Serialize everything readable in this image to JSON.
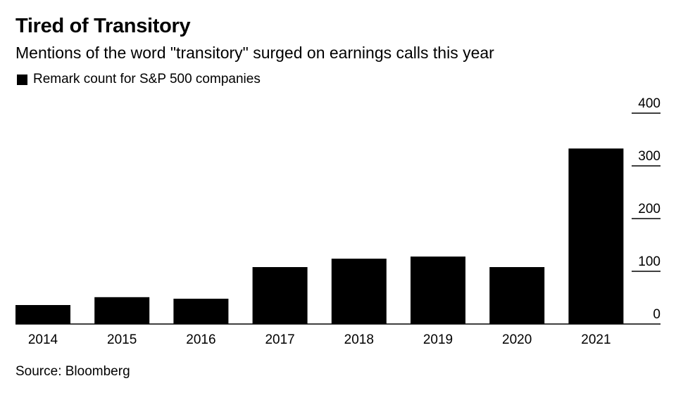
{
  "header": {
    "title": "Tired of Transitory",
    "subtitle": "Mentions of the word \"transitory\" surged on earnings calls this year"
  },
  "footer": {
    "source": "Source: Bloomberg"
  },
  "colors": {
    "bar": "#000000",
    "axis": "#000000",
    "background": "#ffffff"
  },
  "chart_data": {
    "type": "bar",
    "title": "Tired of Transitory",
    "subtitle": "Mentions of the word \"transitory\" surged on earnings calls this year",
    "categories": [
      "2014",
      "2015",
      "2016",
      "2017",
      "2018",
      "2019",
      "2020",
      "2021"
    ],
    "series": [
      {
        "name": "Remark count for S&P 500 companies",
        "values": [
          36,
          51,
          48,
          108,
          124,
          128,
          108,
          333
        ]
      }
    ],
    "ylim": [
      0,
      400
    ],
    "yticks": [
      0,
      100,
      200,
      300,
      400
    ],
    "ytick_labels": [
      "0",
      "100",
      "200",
      "300",
      "400"
    ],
    "y_axis_side": "right",
    "grid": false,
    "legend_position": "top-left"
  }
}
